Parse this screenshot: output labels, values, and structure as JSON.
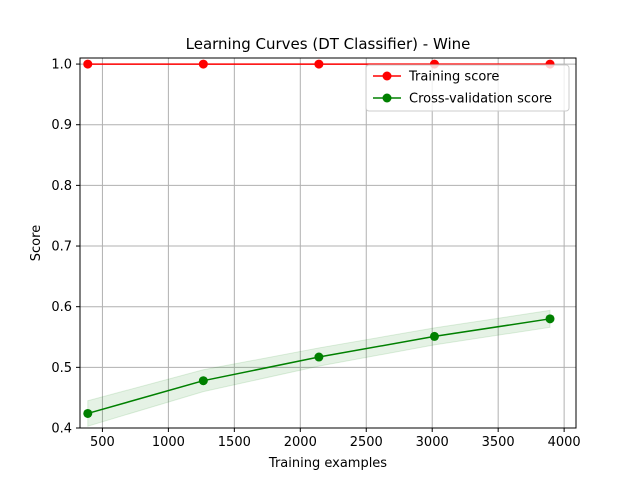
{
  "chart_data": {
    "type": "line",
    "title": "Learning Curves (DT Classifier) - Wine",
    "xlabel": "Training examples",
    "ylabel": "Score",
    "xlim": [
      330,
      4090
    ],
    "ylim": [
      0.4,
      1.01
    ],
    "xticks": [
      500,
      1000,
      1500,
      2000,
      2500,
      3000,
      3500,
      4000
    ],
    "xtick_labels": [
      "500",
      "1000",
      "1500",
      "2000",
      "2500",
      "3000",
      "3500",
      "4000"
    ],
    "yticks": [
      0.4,
      0.5,
      0.6,
      0.7,
      0.8,
      0.9,
      1.0
    ],
    "ytick_labels": [
      "0.4",
      "0.5",
      "0.6",
      "0.7",
      "0.8",
      "0.9",
      "1.0"
    ],
    "grid": true,
    "legend_position": "top-right",
    "x": [
      389,
      1265,
      2141,
      3017,
      3893
    ],
    "series": [
      {
        "name": "Training score",
        "color": "#ff0000",
        "values": [
          1.0,
          1.0,
          1.0,
          1.0,
          1.0
        ],
        "band_lower": [
          1.0,
          1.0,
          1.0,
          1.0,
          1.0
        ],
        "band_upper": [
          1.0,
          1.0,
          1.0,
          1.0,
          1.0
        ]
      },
      {
        "name": "Cross-validation score",
        "color": "#008000",
        "values": [
          0.424,
          0.478,
          0.517,
          0.551,
          0.58
        ],
        "band_lower": [
          0.403,
          0.46,
          0.502,
          0.537,
          0.566
        ],
        "band_upper": [
          0.445,
          0.496,
          0.532,
          0.565,
          0.594
        ]
      }
    ]
  }
}
